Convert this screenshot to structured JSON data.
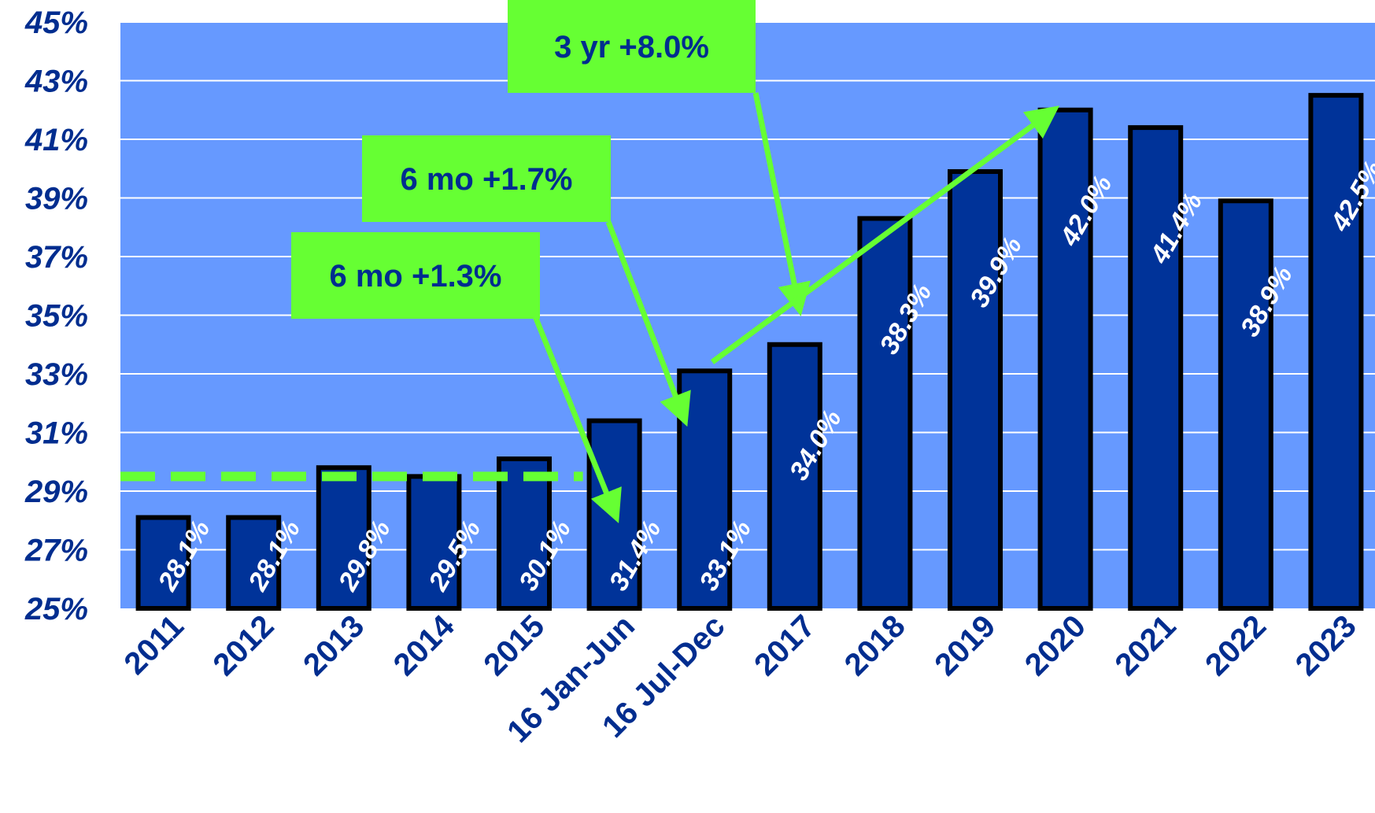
{
  "chart_data": {
    "type": "bar",
    "categories": [
      "2011",
      "2012",
      "2013",
      "2014",
      "2015",
      "16 Jan-Jun",
      "16 Jul-Dec",
      "2017",
      "2018",
      "2019",
      "2020",
      "2021",
      "2022",
      "2023"
    ],
    "values": [
      28.1,
      28.1,
      29.8,
      29.5,
      30.1,
      31.4,
      33.1,
      34.0,
      38.3,
      39.9,
      42.0,
      41.4,
      38.9,
      42.5
    ],
    "data_labels": [
      "28.1%",
      "28.1%",
      "29.8%",
      "29.5%",
      "30.1%",
      "31.4%",
      "33.1%",
      "34.0%",
      "38.3%",
      "39.9%",
      "42.0%",
      "41.4%",
      "38.9%",
      "42.5%"
    ],
    "ylim": [
      25,
      45
    ],
    "yticks": [
      25,
      27,
      29,
      31,
      33,
      35,
      37,
      39,
      41,
      43,
      45
    ],
    "ytick_labels": [
      "25%",
      "27%",
      "29%",
      "31%",
      "33%",
      "35%",
      "37%",
      "39%",
      "41%",
      "43%",
      "45%"
    ],
    "grid": true,
    "reference_line": 29.5,
    "colors": {
      "plot_bg": "#6699ff",
      "bar": "#003399",
      "bar_outline": "#000000",
      "grid": "#ffffff",
      "callout_bg": "#66ff33",
      "arrow": "#66ff33",
      "axis_text": "#002d8f",
      "label_text": "#ffffff"
    },
    "annotations": [
      {
        "text": "3 yr +8.0%"
      },
      {
        "text": "6 mo +1.7%"
      },
      {
        "text": "6 mo +1.3%"
      }
    ]
  }
}
